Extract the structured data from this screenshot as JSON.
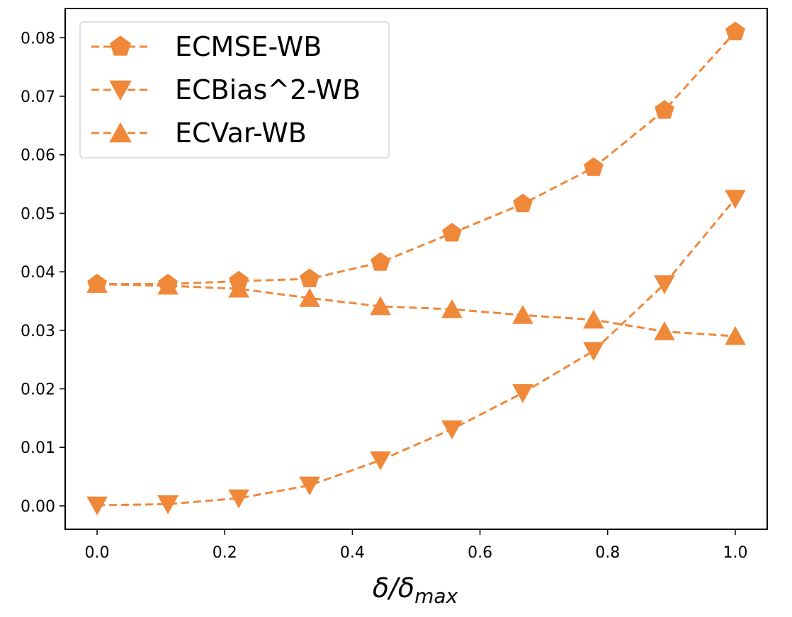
{
  "chart_data": {
    "type": "line",
    "title": "",
    "xlabel": "δ/δ",
    "xlabel_subscript": "max",
    "ylabel": "",
    "xlim": [
      -0.05,
      1.05
    ],
    "ylim": [
      -0.004,
      0.085
    ],
    "xticks": [
      0.0,
      0.2,
      0.4,
      0.6,
      0.8,
      1.0
    ],
    "xtick_labels": [
      "0.0",
      "0.2",
      "0.4",
      "0.6",
      "0.8",
      "1.0"
    ],
    "yticks": [
      0.0,
      0.01,
      0.02,
      0.03,
      0.04,
      0.05,
      0.06,
      0.07,
      0.08
    ],
    "ytick_labels": [
      "0.00",
      "0.01",
      "0.02",
      "0.03",
      "0.04",
      "0.05",
      "0.06",
      "0.07",
      "0.08"
    ],
    "grid": false,
    "legend_position": "upper-left",
    "color": "#f0883a",
    "x": [
      0.0,
      0.111,
      0.222,
      0.333,
      0.444,
      0.556,
      0.667,
      0.778,
      0.889,
      1.0
    ],
    "series": [
      {
        "name": "ECMSE-WB",
        "marker": "pentagon",
        "values": [
          0.0379,
          0.0379,
          0.0384,
          0.0388,
          0.0416,
          0.0466,
          0.0516,
          0.0578,
          0.0676,
          0.081
        ]
      },
      {
        "name": "ECBias^2-WB",
        "marker": "triangle-down",
        "values": [
          0.0001,
          0.0003,
          0.0013,
          0.0035,
          0.0078,
          0.0131,
          0.0193,
          0.0265,
          0.0379,
          0.0525
        ]
      },
      {
        "name": "ECVar-WB",
        "marker": "triangle-up",
        "values": [
          0.0379,
          0.0376,
          0.0371,
          0.0355,
          0.0341,
          0.0336,
          0.0326,
          0.0318,
          0.0298,
          0.029
        ]
      }
    ]
  }
}
